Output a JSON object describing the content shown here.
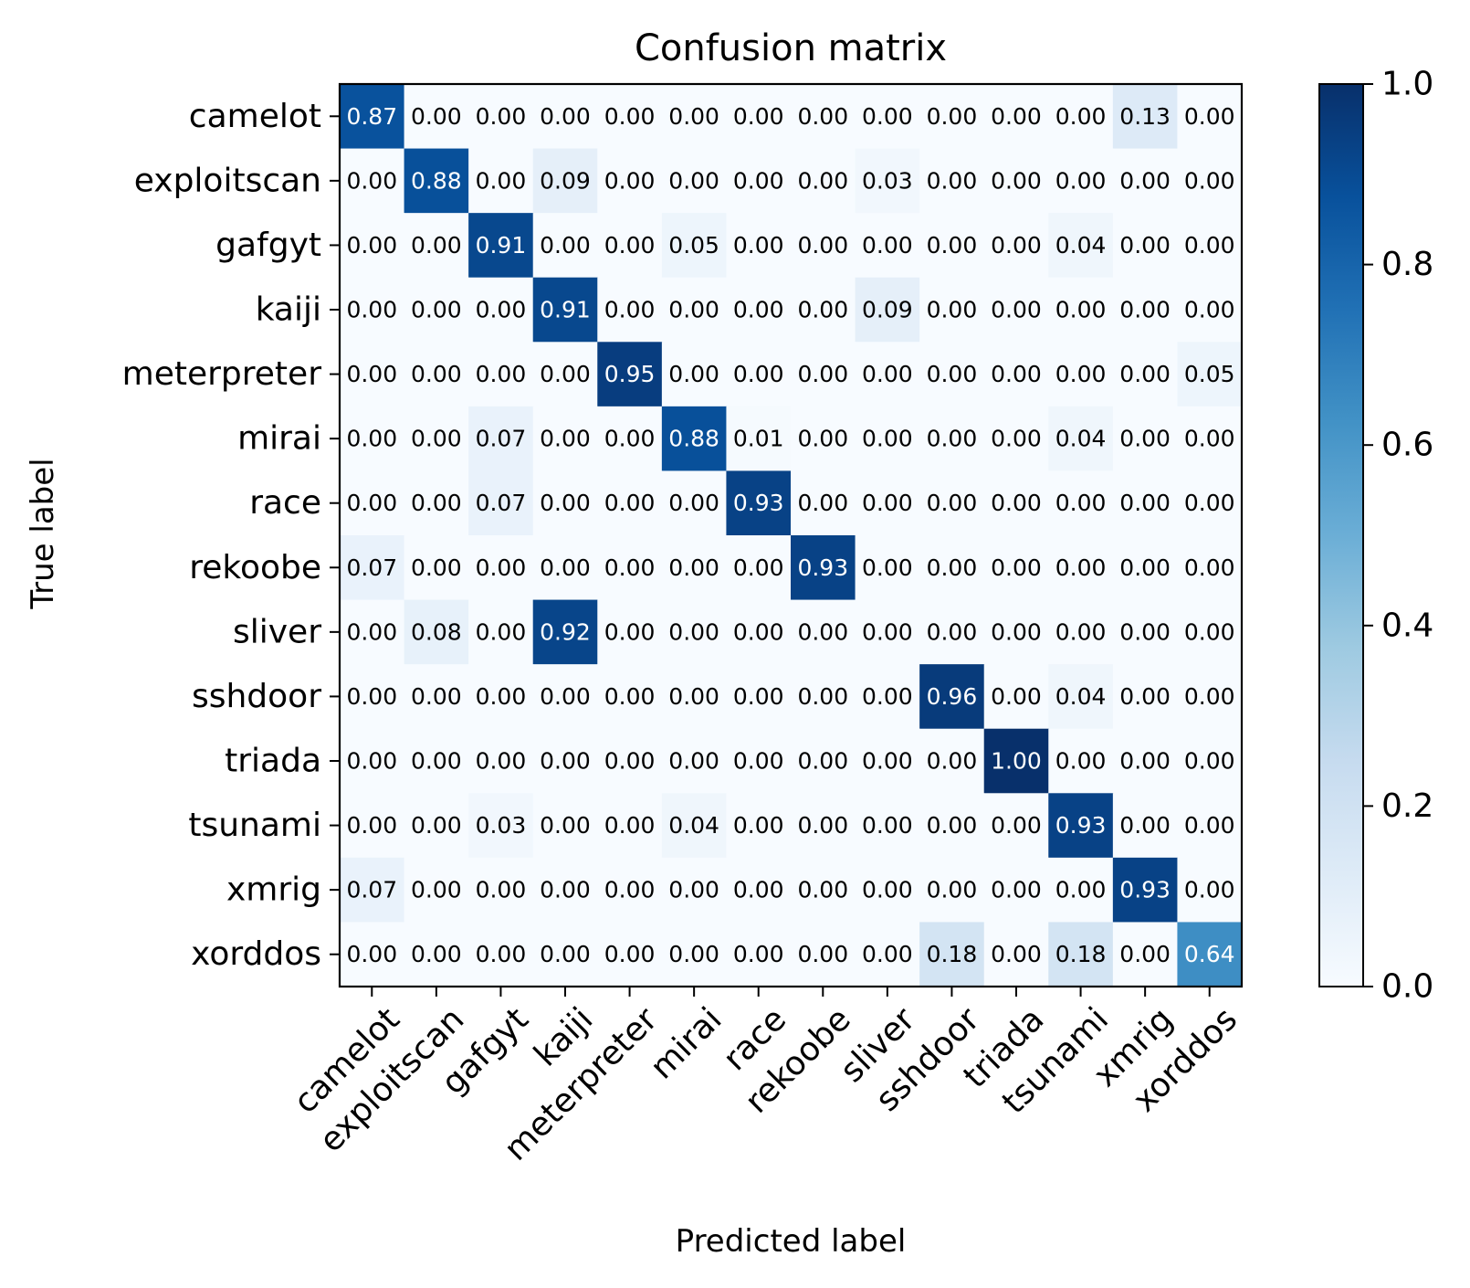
{
  "chart_data": {
    "type": "heatmap",
    "title": "Confusion matrix",
    "xlabel": "Predicted label",
    "ylabel": "True label",
    "x_categories": [
      "camelot",
      "exploitscan",
      "gafgyt",
      "kaiji",
      "meterpreter",
      "mirai",
      "race",
      "rekoobe",
      "sliver",
      "sshdoor",
      "triada",
      "tsunami",
      "xmrig",
      "xorddos"
    ],
    "y_categories": [
      "camelot",
      "exploitscan",
      "gafgyt",
      "kaiji",
      "meterpreter",
      "mirai",
      "race",
      "rekoobe",
      "sliver",
      "sshdoor",
      "triada",
      "tsunami",
      "xmrig",
      "xorddos"
    ],
    "values": [
      [
        0.87,
        0.0,
        0.0,
        0.0,
        0.0,
        0.0,
        0.0,
        0.0,
        0.0,
        0.0,
        0.0,
        0.0,
        0.13,
        0.0
      ],
      [
        0.0,
        0.88,
        0.0,
        0.09,
        0.0,
        0.0,
        0.0,
        0.0,
        0.03,
        0.0,
        0.0,
        0.0,
        0.0,
        0.0
      ],
      [
        0.0,
        0.0,
        0.91,
        0.0,
        0.0,
        0.05,
        0.0,
        0.0,
        0.0,
        0.0,
        0.0,
        0.04,
        0.0,
        0.0
      ],
      [
        0.0,
        0.0,
        0.0,
        0.91,
        0.0,
        0.0,
        0.0,
        0.0,
        0.09,
        0.0,
        0.0,
        0.0,
        0.0,
        0.0
      ],
      [
        0.0,
        0.0,
        0.0,
        0.0,
        0.95,
        0.0,
        0.0,
        0.0,
        0.0,
        0.0,
        0.0,
        0.0,
        0.0,
        0.05
      ],
      [
        0.0,
        0.0,
        0.07,
        0.0,
        0.0,
        0.88,
        0.01,
        0.0,
        0.0,
        0.0,
        0.0,
        0.04,
        0.0,
        0.0
      ],
      [
        0.0,
        0.0,
        0.07,
        0.0,
        0.0,
        0.0,
        0.93,
        0.0,
        0.0,
        0.0,
        0.0,
        0.0,
        0.0,
        0.0
      ],
      [
        0.07,
        0.0,
        0.0,
        0.0,
        0.0,
        0.0,
        0.0,
        0.93,
        0.0,
        0.0,
        0.0,
        0.0,
        0.0,
        0.0
      ],
      [
        0.0,
        0.08,
        0.0,
        0.92,
        0.0,
        0.0,
        0.0,
        0.0,
        0.0,
        0.0,
        0.0,
        0.0,
        0.0,
        0.0
      ],
      [
        0.0,
        0.0,
        0.0,
        0.0,
        0.0,
        0.0,
        0.0,
        0.0,
        0.0,
        0.96,
        0.0,
        0.04,
        0.0,
        0.0
      ],
      [
        0.0,
        0.0,
        0.0,
        0.0,
        0.0,
        0.0,
        0.0,
        0.0,
        0.0,
        0.0,
        1.0,
        0.0,
        0.0,
        0.0
      ],
      [
        0.0,
        0.0,
        0.03,
        0.0,
        0.0,
        0.04,
        0.0,
        0.0,
        0.0,
        0.0,
        0.0,
        0.93,
        0.0,
        0.0
      ],
      [
        0.07,
        0.0,
        0.0,
        0.0,
        0.0,
        0.0,
        0.0,
        0.0,
        0.0,
        0.0,
        0.0,
        0.0,
        0.93,
        0.0
      ],
      [
        0.0,
        0.0,
        0.0,
        0.0,
        0.0,
        0.0,
        0.0,
        0.0,
        0.0,
        0.18,
        0.0,
        0.18,
        0.0,
        0.64
      ]
    ],
    "value_format": "0.00",
    "colorbar": {
      "range": [
        0.0,
        1.0
      ],
      "ticks": [
        0.0,
        0.2,
        0.4,
        0.6,
        0.8,
        1.0
      ],
      "tick_labels": [
        "0.0",
        "0.2",
        "0.4",
        "0.6",
        "0.8",
        "1.0"
      ],
      "colormap": "Blues",
      "colors": [
        "#f7fbff",
        "#deebf7",
        "#c6dbef",
        "#9ecae1",
        "#6baed6",
        "#4292c6",
        "#2171b5",
        "#08519c",
        "#08306b"
      ]
    },
    "text_colors": {
      "dark": "#000000",
      "light": "#ffffff"
    },
    "x_tick_rotation_deg": 45,
    "grid": false
  }
}
